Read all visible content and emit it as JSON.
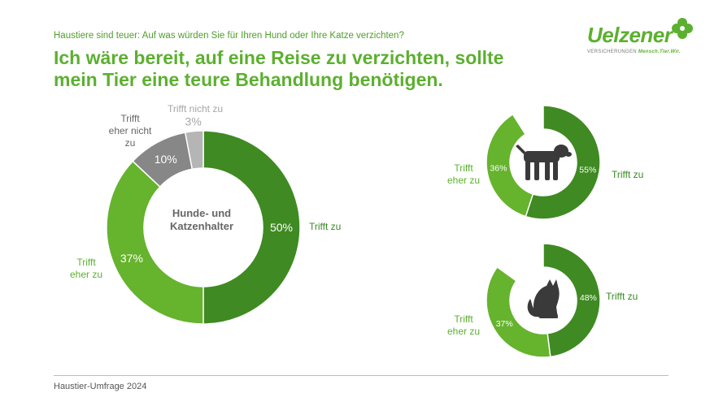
{
  "header": {
    "question": "Haustiere sind teuer: Auf was würden Sie für Ihren Hund oder Ihre Katze verzichten?",
    "headline": "Ich wäre bereit, auf eine Reise zu verzichten, sollte\nmein Tier eine teure Behandlung benötigen."
  },
  "logo": {
    "word": "Uelzener",
    "tag_prefix": "VERSICHERUNGEN",
    "tag_slogan": "Mensch.Tier.Wir."
  },
  "footer": {
    "text": "Haustier-Umfrage 2024"
  },
  "colors": {
    "dark_green": "#3f8a22",
    "light_green": "#66b32e",
    "dark_grey": "#878787",
    "light_grey": "#b5b5b5"
  },
  "chart_data": [
    {
      "type": "pie",
      "center_label": "Hunde- und\nKatzenhalter",
      "categories": [
        "Trifft zu",
        "Trifft eher zu",
        "Trifft eher nicht zu",
        "Trifft nicht zu"
      ],
      "category_labels": [
        "Trifft zu",
        "Trifft\neher zu",
        "Trifft\neher nicht\nzu",
        "Trifft nicht zu"
      ],
      "values": [
        50,
        37,
        10,
        3
      ],
      "value_labels": [
        "50%",
        "37%",
        "10%",
        "3%"
      ]
    },
    {
      "type": "pie",
      "icon": "dog-icon",
      "categories": [
        "Trifft zu",
        "Trifft eher zu"
      ],
      "category_labels": [
        "Trifft zu",
        "Trifft\neher zu"
      ],
      "values": [
        55,
        36
      ],
      "value_labels": [
        "55%",
        "36%"
      ]
    },
    {
      "type": "pie",
      "icon": "cat-icon",
      "categories": [
        "Trifft zu",
        "Trifft eher zu"
      ],
      "category_labels": [
        "Trifft zu",
        "Trifft\neher zu"
      ],
      "values": [
        48,
        37
      ],
      "value_labels": [
        "48%",
        "37%"
      ]
    }
  ]
}
